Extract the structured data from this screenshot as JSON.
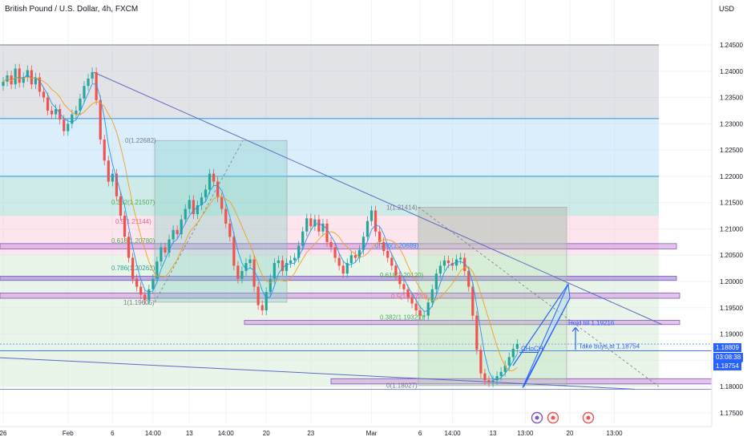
{
  "header": {
    "title": "British Pound / U.S. Dollar, 4h, FXCM",
    "currency": "USD"
  },
  "price_badges": {
    "last_price": "1.18809",
    "countdown": "03:08:38",
    "bid": "1.18754",
    "last_color": "#2962ff",
    "bid_color": "#2962ff"
  },
  "annotations": {
    "hold": "Hold till 1.19216",
    "take_buys": "Take buys at 1.18754",
    "choch": "CHoCH"
  },
  "chart_data": {
    "type": "line",
    "symbol": "GBPUSD",
    "interval": "4h",
    "y_ticks": [
      1.245,
      1.24,
      1.235,
      1.23,
      1.225,
      1.22,
      1.215,
      1.21,
      1.205,
      1.2,
      1.195,
      1.19,
      1.185,
      1.18,
      1.175
    ],
    "y_tick_labels": [
      "1.24500",
      "1.24000",
      "1.23500",
      "1.23000",
      "1.22500",
      "1.22000",
      "1.21500",
      "1.21000",
      "1.20500",
      "1.20000",
      "1.19500",
      "1.19000",
      "1.18500",
      "1.18000",
      "1.17500"
    ],
    "ylim": [
      1.173,
      1.2505
    ],
    "x_tick_labels": [
      "26",
      "Feb",
      "6",
      "14:00",
      "13",
      "14:00",
      "20",
      "23",
      "Mar",
      "6",
      "14:00",
      "13",
      "13:00",
      "20",
      "13:00"
    ],
    "x_tick_index": [
      0,
      16,
      27,
      37,
      46,
      55,
      65,
      76,
      91,
      103,
      111,
      121,
      129,
      140,
      151
    ],
    "x_count": 153,
    "close": [
      1.238,
      1.2392,
      1.2375,
      1.2405,
      1.2378,
      1.2389,
      1.2402,
      1.2375,
      1.2388,
      1.2361,
      1.235,
      1.2325,
      1.2318,
      1.2328,
      1.2308,
      1.2286,
      1.23,
      1.2318,
      1.2325,
      1.2348,
      1.2372,
      1.2386,
      1.2398,
      1.2345,
      1.227,
      1.223,
      1.219,
      1.2205,
      1.2162,
      1.2125,
      1.2085,
      1.2045,
      1.2005,
      1.199,
      1.1975,
      1.1965,
      1.1985,
      1.2005,
      1.2038,
      1.2065,
      1.2055,
      1.208,
      1.2098,
      1.209,
      1.2118,
      1.2138,
      1.2155,
      1.2128,
      1.2145,
      1.216,
      1.2175,
      1.2205,
      1.219,
      1.216,
      1.2138,
      1.211,
      1.2085,
      1.203,
      1.2005,
      1.202,
      1.2035,
      1.2042,
      1.199,
      1.1955,
      1.1945,
      1.198,
      1.2005,
      1.2035,
      1.204,
      1.202,
      1.2035,
      1.204,
      1.2045,
      1.2068,
      1.2095,
      1.212,
      1.2105,
      1.2118,
      1.2095,
      1.211,
      1.2075,
      1.2065,
      1.2045,
      1.203,
      1.2015,
      1.2035,
      1.205,
      1.2045,
      1.206,
      1.2085,
      1.2115,
      1.2135,
      1.2095,
      1.2075,
      1.2058,
      1.2045,
      1.203,
      1.2012,
      1.1995,
      1.1985,
      1.197,
      1.1958,
      1.1945,
      1.1935,
      1.1935,
      1.196,
      1.1985,
      1.2015,
      1.203,
      1.204,
      1.2035,
      1.203,
      1.2042,
      1.2045,
      1.202,
      1.199,
      1.1935,
      1.187,
      1.1825,
      1.1812,
      1.1808,
      1.1812,
      1.182,
      1.1828,
      1.184,
      1.1856,
      1.1872,
      1.1881
    ],
    "series_colors": [
      "#26a69a",
      "#ef5350",
      "#f0a020",
      "#2196f3"
    ],
    "fib_labels_left": [
      "0(1.22682)",
      "0.382(1.21507)",
      "0.5(1.21144)",
      "0.618(1.20780)",
      "0.786(1.20263)",
      "1(1.19605)"
    ],
    "fib_labels_right": [
      "1(1.21414)",
      "0.786(1.20689)",
      "0.618(1.20120)",
      "0.5(1.19720)",
      "0.382(1.19321)",
      "0(1.18027)"
    ],
    "zones": [
      {
        "from": 1.231,
        "to": 1.245,
        "color": "#b2b5be"
      },
      {
        "from": 1.22,
        "to": 1.231,
        "color": "#9fd3f7"
      },
      {
        "from": 1.2125,
        "to": 1.22,
        "color": "#80cbc4"
      },
      {
        "from": 1.205,
        "to": 1.2125,
        "color": "#f8bbd0"
      },
      {
        "from": 1.18,
        "to": 1.205,
        "color": "#c8e6c9"
      }
    ],
    "horizontal_boxes": [
      {
        "from": 1.2062,
        "to": 1.2072,
        "color": "#ce93d8"
      },
      {
        "from": 1.2002,
        "to": 1.201,
        "color": "#9575cd"
      },
      {
        "from": 1.1968,
        "to": 1.1978,
        "color": "#ce93d8"
      },
      {
        "from": 1.1918,
        "to": 1.1926,
        "color": "#ce93d8"
      },
      {
        "from": 1.1805,
        "to": 1.1815,
        "color": "#ce93d8"
      }
    ],
    "grid": true,
    "legend": "none"
  }
}
